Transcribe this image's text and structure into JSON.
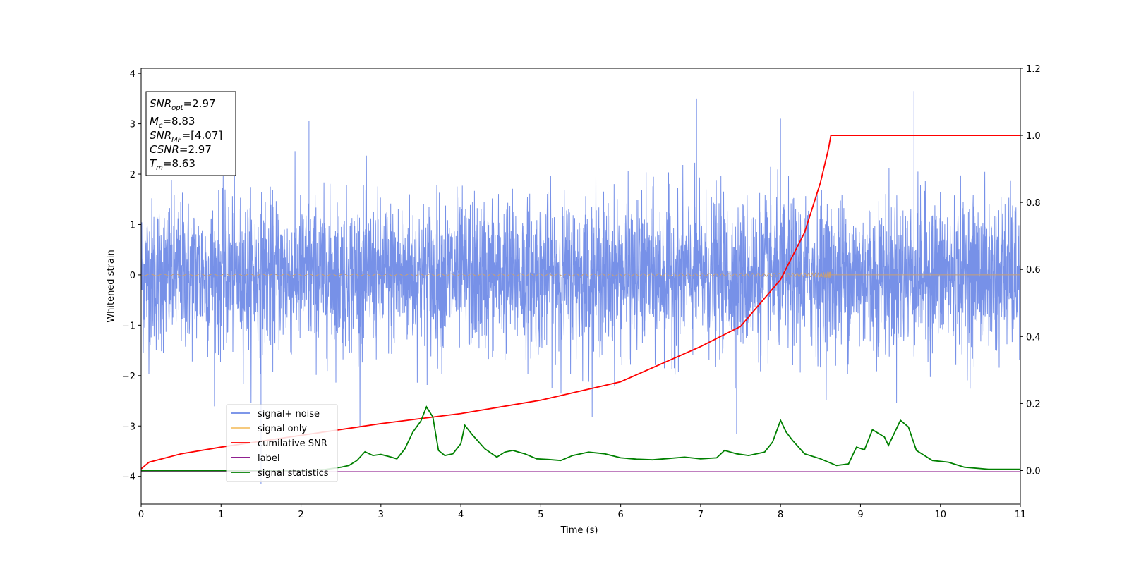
{
  "chart_data": {
    "type": "line",
    "title": "",
    "xlabel": "Time (s)",
    "ylabel": "Whitened strain",
    "y2label": "",
    "xlim": [
      0,
      11
    ],
    "ylim": [
      -4.55,
      4.1
    ],
    "y2lim": [
      -0.1,
      1.2
    ],
    "xticks": [
      "0",
      "1",
      "2",
      "3",
      "4",
      "5",
      "6",
      "7",
      "8",
      "9",
      "10",
      "11"
    ],
    "yticks": [
      "−4",
      "−3",
      "−2",
      "−1",
      "0",
      "1",
      "2",
      "3",
      "4"
    ],
    "y2ticks": [
      "0.0",
      "0.2",
      "0.4",
      "0.6",
      "0.8",
      "1.0",
      "1.2"
    ],
    "grid": false,
    "legend_position": "lower-left",
    "annotation": {
      "lines": [
        {
          "name": "SNR",
          "sub": "opt",
          "value": "=2.97"
        },
        {
          "name": "M",
          "sub": "c",
          "value": "=8.83"
        },
        {
          "name": "SNR",
          "sub": "MF",
          "value": "=[4.07]"
        },
        {
          "name": "CSNR",
          "sub": "",
          "value": "=2.97"
        },
        {
          "name": "T",
          "sub": "m",
          "value": "=8.63"
        }
      ]
    },
    "series": [
      {
        "name": "signal+ noise",
        "axis": "left",
        "color": "#6b88e6",
        "description": "white noise, std ~0.75, peaks about ±3.5",
        "noise_amplitude": 0.75,
        "peak_max": 3.65,
        "peak_min": -4.15
      },
      {
        "name": "signal only",
        "axis": "left",
        "color": "#f5c26b",
        "description": "chirp growing until merger",
        "merger_time": 8.63,
        "final_amplitude": 0.35
      },
      {
        "name": "cumilative SNR",
        "axis": "right",
        "color": "#ff0000",
        "points": [
          [
            0,
            0.005
          ],
          [
            0.1,
            0.025
          ],
          [
            0.5,
            0.05
          ],
          [
            1,
            0.07
          ],
          [
            2,
            0.105
          ],
          [
            3,
            0.14
          ],
          [
            4,
            0.17
          ],
          [
            5,
            0.21
          ],
          [
            6,
            0.265
          ],
          [
            7,
            0.37
          ],
          [
            7.5,
            0.43
          ],
          [
            8,
            0.57
          ],
          [
            8.3,
            0.71
          ],
          [
            8.5,
            0.86
          ],
          [
            8.6,
            0.96
          ],
          [
            8.63,
            1.0
          ],
          [
            11,
            1.0
          ]
        ]
      },
      {
        "name": "label",
        "axis": "left",
        "color": "#800080",
        "points": [
          [
            0,
            -3.91
          ],
          [
            11,
            -3.91
          ]
        ]
      },
      {
        "name": "signal statistics",
        "axis": "right",
        "color": "#008000",
        "points": [
          [
            0,
            0.0
          ],
          [
            1,
            0.0
          ],
          [
            2,
            0.0
          ],
          [
            2.3,
            0.003
          ],
          [
            2.5,
            0.01
          ],
          [
            2.6,
            0.015
          ],
          [
            2.7,
            0.03
          ],
          [
            2.8,
            0.056
          ],
          [
            2.9,
            0.045
          ],
          [
            3.0,
            0.048
          ],
          [
            3.1,
            0.042
          ],
          [
            3.2,
            0.035
          ],
          [
            3.3,
            0.065
          ],
          [
            3.4,
            0.115
          ],
          [
            3.5,
            0.148
          ],
          [
            3.57,
            0.19
          ],
          [
            3.65,
            0.16
          ],
          [
            3.72,
            0.06
          ],
          [
            3.8,
            0.045
          ],
          [
            3.9,
            0.05
          ],
          [
            4.0,
            0.08
          ],
          [
            4.05,
            0.135
          ],
          [
            4.15,
            0.105
          ],
          [
            4.3,
            0.065
          ],
          [
            4.45,
            0.04
          ],
          [
            4.55,
            0.055
          ],
          [
            4.65,
            0.06
          ],
          [
            4.8,
            0.05
          ],
          [
            4.95,
            0.035
          ],
          [
            5.1,
            0.033
          ],
          [
            5.25,
            0.03
          ],
          [
            5.4,
            0.045
          ],
          [
            5.6,
            0.055
          ],
          [
            5.8,
            0.05
          ],
          [
            6.0,
            0.038
          ],
          [
            6.2,
            0.034
          ],
          [
            6.4,
            0.032
          ],
          [
            6.6,
            0.036
          ],
          [
            6.8,
            0.04
          ],
          [
            7.0,
            0.035
          ],
          [
            7.2,
            0.038
          ],
          [
            7.3,
            0.06
          ],
          [
            7.45,
            0.05
          ],
          [
            7.6,
            0.045
          ],
          [
            7.8,
            0.055
          ],
          [
            7.9,
            0.085
          ],
          [
            8.0,
            0.15
          ],
          [
            8.07,
            0.115
          ],
          [
            8.15,
            0.09
          ],
          [
            8.3,
            0.05
          ],
          [
            8.5,
            0.035
          ],
          [
            8.7,
            0.015
          ],
          [
            8.85,
            0.02
          ],
          [
            8.95,
            0.07
          ],
          [
            9.05,
            0.062
          ],
          [
            9.15,
            0.122
          ],
          [
            9.3,
            0.1
          ],
          [
            9.35,
            0.075
          ],
          [
            9.5,
            0.15
          ],
          [
            9.6,
            0.13
          ],
          [
            9.7,
            0.06
          ],
          [
            9.9,
            0.03
          ],
          [
            10.1,
            0.025
          ],
          [
            10.3,
            0.01
          ],
          [
            10.6,
            0.004
          ],
          [
            11,
            0.004
          ]
        ]
      }
    ]
  }
}
